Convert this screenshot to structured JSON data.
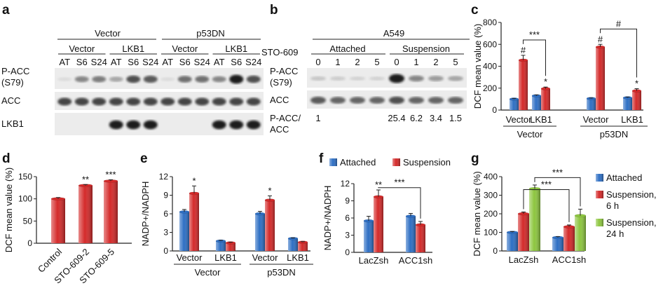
{
  "panels": {
    "a": {
      "letter": "a",
      "groups": [
        "Vector",
        "p53DN"
      ],
      "subgroups": [
        "Vector",
        "LKB1",
        "Vector",
        "LKB1"
      ],
      "lanes": [
        "AT",
        "S6",
        "S24",
        "AT",
        "S6",
        "S24",
        "AT",
        "S6",
        "S24",
        "AT",
        "S6",
        "S24"
      ],
      "rows": [
        "P-ACC\n(S79)",
        "ACC",
        "LKB1"
      ],
      "intensity": {
        "pacc": [
          0.05,
          0.45,
          0.5,
          0.3,
          0.7,
          0.65,
          0.05,
          0.55,
          0.55,
          0.45,
          0.95,
          0.7
        ],
        "acc": [
          0.75,
          0.75,
          0.75,
          0.75,
          0.75,
          0.75,
          0.75,
          0.75,
          0.75,
          0.75,
          0.75,
          0.75
        ],
        "lkb1": [
          0.0,
          0.0,
          0.0,
          0.95,
          0.95,
          0.95,
          0.0,
          0.0,
          0.0,
          0.95,
          0.95,
          0.95
        ]
      }
    },
    "b": {
      "letter": "b",
      "cell_line": "A549",
      "drug_label": "STO-609",
      "conditions": [
        "Attached",
        "Suspension"
      ],
      "lanes": [
        "0",
        "1",
        "2",
        "5",
        "0",
        "1",
        "2",
        "5"
      ],
      "rows": [
        "P-ACC\n(S79)",
        "ACC"
      ],
      "ratio_label": "P-ACC/\nACC",
      "ratios": [
        "1",
        "",
        "",
        "",
        "25.4",
        "6.2",
        "3.4",
        "1.5"
      ],
      "intensity": {
        "pacc": [
          0.15,
          0.12,
          0.1,
          0.1,
          0.95,
          0.45,
          0.35,
          0.3
        ],
        "acc": [
          0.65,
          0.6,
          0.6,
          0.6,
          0.7,
          0.6,
          0.6,
          0.6
        ]
      }
    }
  },
  "chart_data": [
    {
      "panel": "c",
      "type": "bar",
      "ylabel": "DCF mean value (%)",
      "ylim": [
        0,
        800
      ],
      "yticks": [
        0,
        200,
        400,
        600,
        800
      ],
      "categories": [
        "Vector",
        "LKB1",
        "Vector",
        "LKB1"
      ],
      "groups": [
        "Vector",
        "p53DN"
      ],
      "series": [
        {
          "color": "#2e6fc4",
          "values": [
            100,
            130,
            105,
            112
          ],
          "errors": [
            5,
            8,
            5,
            6
          ]
        },
        {
          "color": "#d42a2a",
          "values": [
            455,
            195,
            575,
            175
          ],
          "errors": [
            45,
            15,
            25,
            20
          ]
        }
      ],
      "annotations": [
        {
          "text": "#",
          "at": [
            0,
            1
          ]
        },
        {
          "text": "*",
          "at": [
            1,
            1
          ]
        },
        {
          "text": "#",
          "at": [
            2,
            1
          ]
        },
        {
          "text": "*",
          "at": [
            3,
            1
          ]
        }
      ],
      "brackets": [
        {
          "from": [
            0,
            1
          ],
          "to": [
            1,
            1
          ],
          "text": "***"
        },
        {
          "from": [
            2,
            1
          ],
          "to": [
            3,
            1
          ],
          "text": "#"
        }
      ]
    },
    {
      "panel": "d",
      "type": "bar",
      "ylabel": "DCF mean value (%)",
      "ylim": [
        0,
        150
      ],
      "yticks": [
        0,
        50,
        100,
        150
      ],
      "categories": [
        "Control",
        "STO-609-2",
        "STO-609-5"
      ],
      "series": [
        {
          "color": "#d42a2a",
          "values": [
            100,
            130,
            140
          ],
          "errors": [
            3,
            2,
            3
          ]
        }
      ],
      "annotations": [
        {
          "text": "**",
          "at": [
            1,
            0
          ]
        },
        {
          "text": "***",
          "at": [
            2,
            0
          ]
        }
      ]
    },
    {
      "panel": "e",
      "type": "bar",
      "ylabel": "NADP+/NADPH",
      "ylim": [
        0,
        12
      ],
      "yticks": [
        0,
        3,
        6,
        9,
        12
      ],
      "categories": [
        "Vector",
        "LKB1",
        "Vector",
        "LKB1"
      ],
      "groups": [
        "Vector",
        "p53DN"
      ],
      "series": [
        {
          "color": "#2e6fc4",
          "values": [
            6.3,
            1.6,
            6.0,
            2.0
          ],
          "errors": [
            0.4,
            0.1,
            0.4,
            0.1
          ]
        },
        {
          "color": "#d42a2a",
          "values": [
            9.3,
            1.3,
            8.2,
            1.4
          ],
          "errors": [
            1.2,
            0.1,
            0.7,
            0.1
          ]
        }
      ],
      "annotations": [
        {
          "text": "*",
          "at": [
            0,
            1
          ]
        },
        {
          "text": "*",
          "at": [
            2,
            1
          ]
        }
      ]
    },
    {
      "panel": "f",
      "type": "bar",
      "ylabel": "NADP+/NADPH",
      "ylim": [
        0,
        12
      ],
      "yticks": [
        0,
        3,
        6,
        9,
        12
      ],
      "categories": [
        "LacZsh",
        "ACC1sh"
      ],
      "legend": [
        "Attached",
        "Suspension"
      ],
      "series": [
        {
          "name": "Attached",
          "color": "#2e6fc4",
          "values": [
            5.5,
            6.3
          ],
          "errors": [
            0.8,
            0.5
          ]
        },
        {
          "name": "Suspension",
          "color": "#d42a2a",
          "values": [
            9.7,
            4.8
          ],
          "errors": [
            1.2,
            0.6
          ]
        }
      ],
      "annotations": [
        {
          "text": "**",
          "at": [
            0,
            1
          ]
        }
      ],
      "brackets": [
        {
          "from": [
            0,
            1
          ],
          "to": [
            1,
            1
          ],
          "text": "***"
        }
      ]
    },
    {
      "panel": "g",
      "type": "bar",
      "ylabel": "DCF mean value (%)",
      "ylim": [
        0,
        400
      ],
      "yticks": [
        0,
        100,
        200,
        300,
        400
      ],
      "categories": [
        "LacZsh",
        "ACC1sh"
      ],
      "legend": [
        "Attached",
        "Suspension,\n6 h",
        "Suspension,\n24 h"
      ],
      "series": [
        {
          "name": "Attached",
          "color": "#2e6fc4",
          "values": [
            100,
            72
          ],
          "errors": [
            4,
            5
          ]
        },
        {
          "name": "Suspension,\n6 h",
          "color": "#d42a2a",
          "values": [
            200,
            130
          ],
          "errors": [
            10,
            10
          ]
        },
        {
          "name": "Suspension,\n24 h",
          "color": "#8dc63f",
          "values": [
            335,
            190
          ],
          "errors": [
            20,
            35
          ]
        }
      ],
      "brackets": [
        {
          "from": [
            0,
            2
          ],
          "to": [
            1,
            2
          ],
          "text": "***"
        },
        {
          "from": [
            0,
            1
          ],
          "to": [
            1,
            1
          ],
          "text": "***"
        }
      ]
    }
  ]
}
